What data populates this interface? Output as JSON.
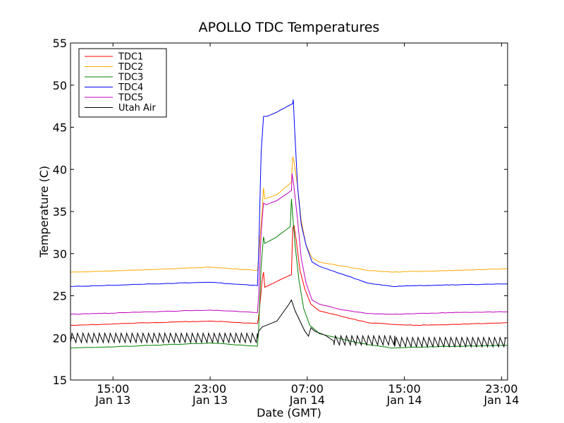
{
  "chart_data": {
    "type": "line",
    "title": "APOLLO TDC Temperatures",
    "xlabel": "Date (GMT)",
    "ylabel": "Temperature (C)",
    "x_unit": "hours since 2013-01-13 00:00 GMT",
    "xlim": [
      11.5,
      47.5
    ],
    "ylim": [
      15,
      55
    ],
    "yticks": [
      15,
      20,
      25,
      30,
      35,
      40,
      45,
      50,
      55
    ],
    "xticks": [
      {
        "x": 15,
        "time": "15:00",
        "date": "Jan 13"
      },
      {
        "x": 23,
        "time": "23:00",
        "date": "Jan 13"
      },
      {
        "x": 31,
        "time": "07:00",
        "date": "Jan 14"
      },
      {
        "x": 39,
        "time": "15:00",
        "date": "Jan 14"
      },
      {
        "x": 47,
        "time": "23:00",
        "date": "Jan 14"
      }
    ],
    "legend_position": "top-left",
    "series": [
      {
        "name": "TDC1",
        "color": "#ff0000",
        "points": [
          [
            11.5,
            21.5
          ],
          [
            14,
            21.6
          ],
          [
            18,
            21.8
          ],
          [
            23,
            22.0
          ],
          [
            26.9,
            21.7
          ],
          [
            27,
            22.5
          ],
          [
            27.3,
            27.0
          ],
          [
            27.4,
            27.8
          ],
          [
            27.5,
            26.0
          ],
          [
            28.5,
            26.7
          ],
          [
            29.7,
            27.5
          ],
          [
            29.8,
            33.0
          ],
          [
            29.9,
            33.4
          ],
          [
            30.1,
            31.5
          ],
          [
            30.4,
            28.0
          ],
          [
            30.8,
            25.8
          ],
          [
            31.3,
            24.0
          ],
          [
            32,
            23.2
          ],
          [
            34,
            22.5
          ],
          [
            36,
            21.8
          ],
          [
            38,
            21.6
          ],
          [
            40,
            21.5
          ],
          [
            43,
            21.6
          ],
          [
            47.5,
            21.8
          ]
        ]
      },
      {
        "name": "TDC2",
        "color": "#ffaa00",
        "points": [
          [
            11.5,
            27.8
          ],
          [
            14,
            27.9
          ],
          [
            18,
            28.1
          ],
          [
            23,
            28.4
          ],
          [
            26.9,
            28.0
          ],
          [
            27,
            29.5
          ],
          [
            27.3,
            35.5
          ],
          [
            27.4,
            37.8
          ],
          [
            27.5,
            36.5
          ],
          [
            28.5,
            37.0
          ],
          [
            29.7,
            38.5
          ],
          [
            29.8,
            41.5
          ],
          [
            29.9,
            41.0
          ],
          [
            30.2,
            38.0
          ],
          [
            30.5,
            34.0
          ],
          [
            30.9,
            31.0
          ],
          [
            31.4,
            29.5
          ],
          [
            32,
            29.0
          ],
          [
            34,
            28.5
          ],
          [
            36,
            28.0
          ],
          [
            38,
            27.8
          ],
          [
            40,
            27.9
          ],
          [
            43,
            28.0
          ],
          [
            47.5,
            28.2
          ]
        ]
      },
      {
        "name": "TDC3",
        "color": "#008000",
        "points": [
          [
            11.5,
            18.8
          ],
          [
            14,
            18.9
          ],
          [
            18,
            19.1
          ],
          [
            23,
            19.4
          ],
          [
            26.9,
            19.0
          ],
          [
            27,
            21.0
          ],
          [
            27.2,
            28.5
          ],
          [
            27.4,
            32.0
          ],
          [
            27.5,
            31.2
          ],
          [
            28.5,
            32.0
          ],
          [
            29.6,
            33.2
          ],
          [
            29.7,
            36.5
          ],
          [
            29.8,
            34.5
          ],
          [
            30,
            31.0
          ],
          [
            30.3,
            27.0
          ],
          [
            30.7,
            23.5
          ],
          [
            31.2,
            21.5
          ],
          [
            32,
            20.5
          ],
          [
            34,
            19.8
          ],
          [
            36,
            19.2
          ],
          [
            38,
            18.8
          ],
          [
            40,
            18.9
          ],
          [
            43,
            19.0
          ],
          [
            47.5,
            19.1
          ]
        ]
      },
      {
        "name": "TDC4",
        "color": "#0000ff",
        "points": [
          [
            11.5,
            26.1
          ],
          [
            14,
            26.2
          ],
          [
            18,
            26.4
          ],
          [
            23,
            26.6
          ],
          [
            26.9,
            26.2
          ],
          [
            27,
            30.0
          ],
          [
            27.2,
            42.0
          ],
          [
            27.4,
            46.3
          ],
          [
            27.7,
            46.3
          ],
          [
            28.5,
            46.8
          ],
          [
            29.8,
            47.8
          ],
          [
            29.85,
            48.3
          ],
          [
            29.95,
            45.0
          ],
          [
            30.2,
            38.0
          ],
          [
            30.5,
            33.5
          ],
          [
            30.9,
            31.0
          ],
          [
            31.4,
            29.0
          ],
          [
            32,
            28.5
          ],
          [
            34,
            27.5
          ],
          [
            36,
            26.5
          ],
          [
            38,
            26.1
          ],
          [
            40,
            26.2
          ],
          [
            43,
            26.3
          ],
          [
            47.5,
            26.4
          ]
        ]
      },
      {
        "name": "TDC5",
        "color": "#bf00bf",
        "points": [
          [
            11.5,
            22.8
          ],
          [
            14,
            22.9
          ],
          [
            18,
            23.1
          ],
          [
            23,
            23.3
          ],
          [
            26.9,
            23.0
          ],
          [
            27,
            25.0
          ],
          [
            27.2,
            32.5
          ],
          [
            27.4,
            36.0
          ],
          [
            27.6,
            35.8
          ],
          [
            28.5,
            36.3
          ],
          [
            29.7,
            37.5
          ],
          [
            29.75,
            39.5
          ],
          [
            29.9,
            38.0
          ],
          [
            30.2,
            34.0
          ],
          [
            30.5,
            29.5
          ],
          [
            30.9,
            26.5
          ],
          [
            31.4,
            24.5
          ],
          [
            32,
            24.0
          ],
          [
            34,
            23.3
          ],
          [
            36,
            22.9
          ],
          [
            38,
            22.8
          ],
          [
            40,
            22.9
          ],
          [
            43,
            23.0
          ],
          [
            47.5,
            23.1
          ]
        ]
      },
      {
        "name": "Utah Air",
        "color": "#000000",
        "sawtooth": true,
        "points": [
          [
            11.5,
            20.0
          ],
          [
            26.9,
            20.0
          ],
          [
            27.0,
            20.8
          ],
          [
            27.3,
            21.3
          ],
          [
            28.5,
            22.0
          ],
          [
            29.5,
            24.0
          ],
          [
            29.7,
            24.5
          ],
          [
            30.0,
            23.2
          ],
          [
            30.4,
            22.0
          ],
          [
            30.8,
            20.8
          ],
          [
            31.1,
            20.2
          ],
          [
            31.3,
            21.2
          ],
          [
            31.6,
            20.8
          ],
          [
            32.5,
            20.3
          ],
          [
            33.2,
            19.6
          ],
          [
            47.5,
            19.5
          ]
        ]
      }
    ]
  }
}
